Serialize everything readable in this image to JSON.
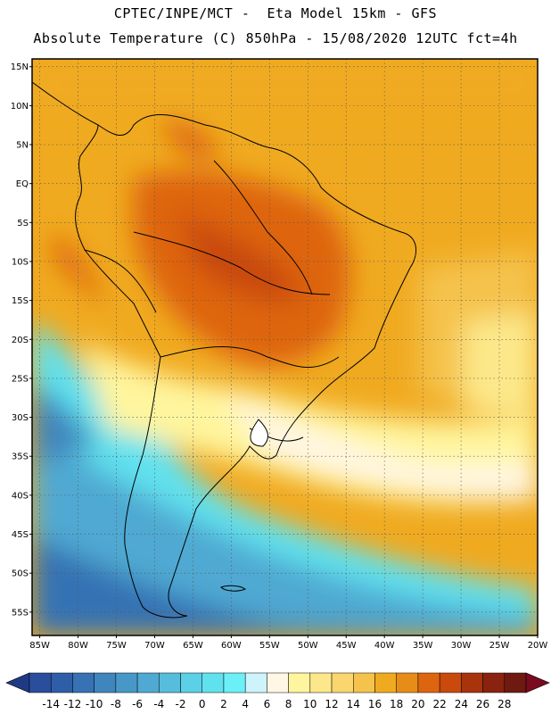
{
  "header": {
    "line1": "CPTEC/INPE/MCT -  Eta Model 15km - GFS",
    "line2": "Absolute Temperature (C) 850hPa - 15/08/2020 12UTC fct=4h"
  },
  "map": {
    "lat_labels": [
      "15N",
      "10N",
      "5N",
      "EQ",
      "5S",
      "10S",
      "15S",
      "20S",
      "25S",
      "30S",
      "35S",
      "40S",
      "45S",
      "50S",
      "55S"
    ],
    "lon_labels": [
      "85W",
      "80W",
      "75W",
      "70W",
      "65W",
      "60W",
      "55W",
      "50W",
      "45W",
      "40W",
      "35W",
      "30W",
      "25W",
      "20W"
    ],
    "lat_values": [
      15,
      10,
      5,
      0,
      -5,
      -10,
      -15,
      -20,
      -25,
      -30,
      -35,
      -40,
      -45,
      -50,
      -55
    ],
    "lon_values": [
      -85,
      -80,
      -75,
      -70,
      -65,
      -60,
      -55,
      -50,
      -45,
      -40,
      -35,
      -30,
      -25,
      -20
    ],
    "lat_range": [
      -58,
      16
    ],
    "lon_range": [
      -86,
      -20
    ],
    "grid": "dotted"
  },
  "colorbar": {
    "labels": [
      "-14",
      "-12",
      "-10",
      "-8",
      "-6",
      "-4",
      "-2",
      "0",
      "2",
      "4",
      "6",
      "8",
      "10",
      "12",
      "14",
      "16",
      "18",
      "20",
      "22",
      "24",
      "26",
      "28"
    ],
    "colors": [
      "#2a4e9c",
      "#2f5ea9",
      "#3672b4",
      "#3f86be",
      "#4798c8",
      "#4fa9d2",
      "#56bddd",
      "#5bd0e6",
      "#60e1ee",
      "#6cf0f7",
      "#cdf4fb",
      "#fff6e4",
      "#fff59e",
      "#fce88a",
      "#f9d66e",
      "#f5c24c",
      "#f0aa20",
      "#e88c18",
      "#de6510",
      "#c94a0c",
      "#a8340c",
      "#8a2210",
      "#6e1a10"
    ],
    "low_color": "#1f3a85",
    "high_color": "#7a0a1e"
  }
}
